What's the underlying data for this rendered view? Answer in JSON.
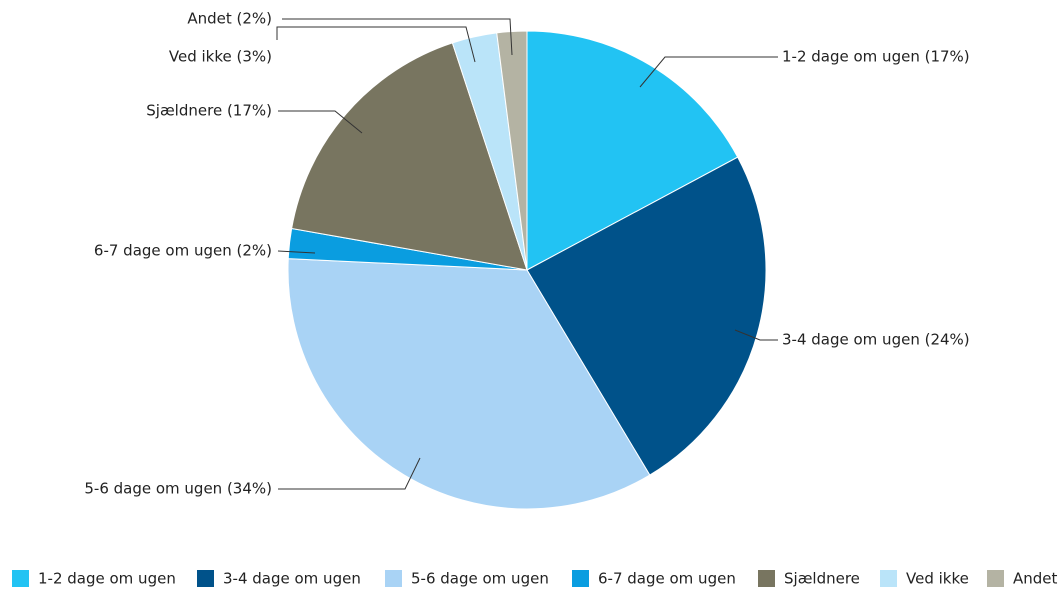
{
  "chart_data": {
    "type": "pie",
    "categories": [
      "1-2 dage om ugen",
      "3-4 dage om ugen",
      "5-6 dage om ugen",
      "6-7 dage om ugen",
      "Sjældnere",
      "Ved ikke",
      "Andet"
    ],
    "values": [
      17,
      24,
      34,
      2,
      17,
      3,
      2
    ],
    "value_labels": [
      "1-2 dage om ugen (17%)",
      "3-4 dage om ugen (24%)",
      "5-6 dage om ugen (34%)",
      "6-7 dage om ugen (2%)",
      "Sjældnere (17%)",
      "Ved ikke (3%)",
      "Andet (2%)"
    ],
    "colors": [
      "#22c3f3",
      "#00528a",
      "#a9d3f5",
      "#0a9de0",
      "#787560",
      "#bae4f9",
      "#b4b3a3"
    ],
    "legend": "bottom"
  }
}
